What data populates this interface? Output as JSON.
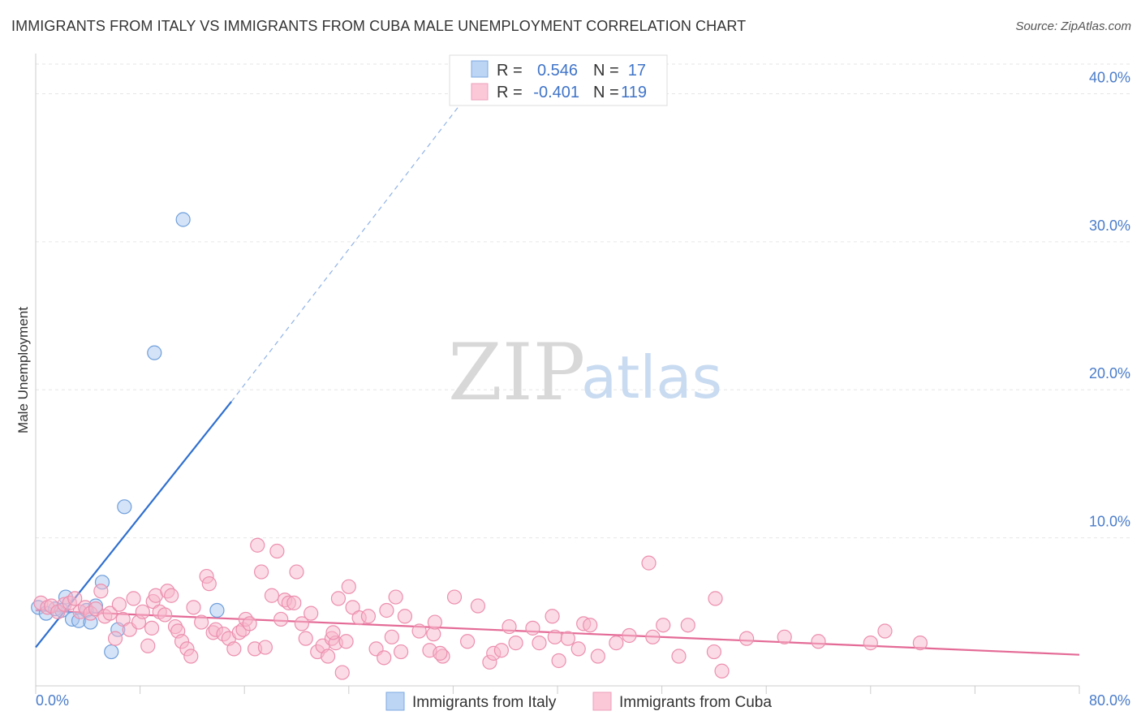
{
  "title": "IMMIGRANTS FROM ITALY VS IMMIGRANTS FROM CUBA MALE UNEMPLOYMENT CORRELATION CHART",
  "source": "Source: ZipAtlas.com",
  "watermark": {
    "zip": "ZIP",
    "atlas": "atlas"
  },
  "chart_data": {
    "type": "scatter",
    "title": "IMMIGRANTS FROM ITALY VS IMMIGRANTS FROM CUBA MALE UNEMPLOYMENT CORRELATION CHART",
    "xlabel": "",
    "ylabel": "Male Unemployment",
    "xlim": [
      0,
      80
    ],
    "ylim": [
      0,
      42
    ],
    "x_tick_labels": {
      "min": "0.0%",
      "max": "80.0%"
    },
    "y_ticks": [
      10,
      20,
      30,
      40
    ],
    "y_tick_labels": [
      "10.0%",
      "20.0%",
      "30.0%",
      "40.0%"
    ],
    "grid": true,
    "legend_position": "top-center",
    "legend": {
      "r_label": "R =",
      "n_label": "N =",
      "entries": [
        {
          "r": "0.546",
          "n": "17"
        },
        {
          "r": "-0.401",
          "n": "119"
        }
      ]
    },
    "series": [
      {
        "name": "Immigrants from Italy",
        "color": "#a9c8f0",
        "stroke": "#6f9fdc",
        "line_color": "#2f6fcf",
        "trend": {
          "x0": 0,
          "y0": 2.6,
          "x1": 15,
          "y1": 19.2,
          "dash_x1": 33,
          "dash_y1": 39.8
        },
        "points": [
          [
            0.2,
            5.3
          ],
          [
            0.8,
            4.9
          ],
          [
            1.5,
            5.2
          ],
          [
            2.0,
            5.1
          ],
          [
            2.3,
            6.0
          ],
          [
            2.8,
            4.5
          ],
          [
            3.3,
            4.4
          ],
          [
            3.9,
            5.1
          ],
          [
            4.6,
            5.4
          ],
          [
            5.1,
            7.0
          ],
          [
            5.8,
            2.3
          ],
          [
            6.3,
            3.8
          ],
          [
            6.8,
            12.1
          ],
          [
            9.1,
            22.5
          ],
          [
            11.3,
            31.5
          ],
          [
            13.9,
            5.1
          ],
          [
            4.2,
            4.3
          ]
        ]
      },
      {
        "name": "Immigrants from Cuba",
        "color": "#f7b8cc",
        "stroke": "#ec8fae",
        "line_color": "#e46a96",
        "trend": {
          "x0": 0,
          "y0": 5.1,
          "x1": 80,
          "y1": 2.1
        },
        "points": [
          [
            0.4,
            5.6
          ],
          [
            0.9,
            5.3
          ],
          [
            1.2,
            5.4
          ],
          [
            1.7,
            5.0
          ],
          [
            2.2,
            5.5
          ],
          [
            2.6,
            5.6
          ],
          [
            3.0,
            5.9
          ],
          [
            3.4,
            5.0
          ],
          [
            3.8,
            5.3
          ],
          [
            4.2,
            4.9
          ],
          [
            4.6,
            5.2
          ],
          [
            5.0,
            6.4
          ],
          [
            5.3,
            4.7
          ],
          [
            5.7,
            4.9
          ],
          [
            6.1,
            3.2
          ],
          [
            6.4,
            5.5
          ],
          [
            6.7,
            4.5
          ],
          [
            7.2,
            3.8
          ],
          [
            7.5,
            5.9
          ],
          [
            7.9,
            4.3
          ],
          [
            8.2,
            5.0
          ],
          [
            8.6,
            2.7
          ],
          [
            9.0,
            5.7
          ],
          [
            9.2,
            6.1
          ],
          [
            9.5,
            5.0
          ],
          [
            9.9,
            4.8
          ],
          [
            10.1,
            6.4
          ],
          [
            10.4,
            6.1
          ],
          [
            10.7,
            4.0
          ],
          [
            10.9,
            3.7
          ],
          [
            11.2,
            3.0
          ],
          [
            11.6,
            2.5
          ],
          [
            11.9,
            2.0
          ],
          [
            12.1,
            5.3
          ],
          [
            13.1,
            7.4
          ],
          [
            13.3,
            6.9
          ],
          [
            13.6,
            3.6
          ],
          [
            13.8,
            3.8
          ],
          [
            14.4,
            3.5
          ],
          [
            14.8,
            3.2
          ],
          [
            15.2,
            2.5
          ],
          [
            15.6,
            3.6
          ],
          [
            15.9,
            3.8
          ],
          [
            16.1,
            4.5
          ],
          [
            16.4,
            4.2
          ],
          [
            16.8,
            2.5
          ],
          [
            17.0,
            9.5
          ],
          [
            17.3,
            7.7
          ],
          [
            17.6,
            2.6
          ],
          [
            18.1,
            6.1
          ],
          [
            18.5,
            9.1
          ],
          [
            18.8,
            4.5
          ],
          [
            19.1,
            5.8
          ],
          [
            19.4,
            5.6
          ],
          [
            19.8,
            5.6
          ],
          [
            20.0,
            7.7
          ],
          [
            20.4,
            4.2
          ],
          [
            20.7,
            3.2
          ],
          [
            21.1,
            4.9
          ],
          [
            21.6,
            2.3
          ],
          [
            22.0,
            2.7
          ],
          [
            22.4,
            2.0
          ],
          [
            22.7,
            3.2
          ],
          [
            23.0,
            2.9
          ],
          [
            23.2,
            5.9
          ],
          [
            23.5,
            0.9
          ],
          [
            23.8,
            3.0
          ],
          [
            24.0,
            6.7
          ],
          [
            24.3,
            5.3
          ],
          [
            24.8,
            4.6
          ],
          [
            25.5,
            4.7
          ],
          [
            26.1,
            2.5
          ],
          [
            26.9,
            5.1
          ],
          [
            27.3,
            3.3
          ],
          [
            28.0,
            2.3
          ],
          [
            28.3,
            4.7
          ],
          [
            29.4,
            3.7
          ],
          [
            30.2,
            2.4
          ],
          [
            30.5,
            3.5
          ],
          [
            30.6,
            4.3
          ],
          [
            31.2,
            2.0
          ],
          [
            32.1,
            6.0
          ],
          [
            33.1,
            3.0
          ],
          [
            33.9,
            5.4
          ],
          [
            34.8,
            1.6
          ],
          [
            35.1,
            2.2
          ],
          [
            35.7,
            2.4
          ],
          [
            36.3,
            4.0
          ],
          [
            36.8,
            2.9
          ],
          [
            38.1,
            3.9
          ],
          [
            38.6,
            2.9
          ],
          [
            39.6,
            4.7
          ],
          [
            39.8,
            3.3
          ],
          [
            40.1,
            1.7
          ],
          [
            40.8,
            3.2
          ],
          [
            41.6,
            2.5
          ],
          [
            42.0,
            4.2
          ],
          [
            42.5,
            4.1
          ],
          [
            43.1,
            2.0
          ],
          [
            44.5,
            2.9
          ],
          [
            45.5,
            3.4
          ],
          [
            47.0,
            8.3
          ],
          [
            47.3,
            3.3
          ],
          [
            48.1,
            4.1
          ],
          [
            49.3,
            2.0
          ],
          [
            50.0,
            4.1
          ],
          [
            52.0,
            2.3
          ],
          [
            52.6,
            1.0
          ],
          [
            52.1,
            5.9
          ],
          [
            54.5,
            3.2
          ],
          [
            57.4,
            3.3
          ],
          [
            60.0,
            3.0
          ],
          [
            64.0,
            2.9
          ],
          [
            65.1,
            3.7
          ],
          [
            67.8,
            2.9
          ],
          [
            8.9,
            3.9
          ],
          [
            12.7,
            4.3
          ],
          [
            22.8,
            3.6
          ],
          [
            26.7,
            1.9
          ],
          [
            31.0,
            2.2
          ],
          [
            27.6,
            6.0
          ]
        ]
      }
    ]
  }
}
